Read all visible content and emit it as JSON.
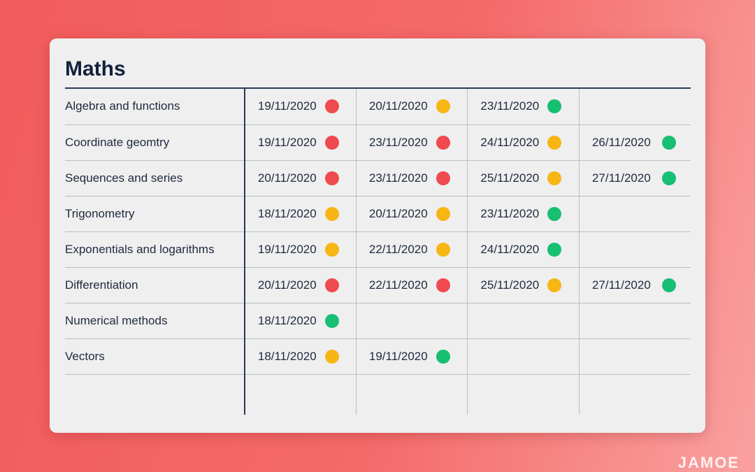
{
  "title": "Maths",
  "colors": {
    "red": "#ef4a4f",
    "amber": "#f7b614",
    "green": "#17bf73"
  },
  "rows": [
    {
      "subject": "Algebra and functions",
      "entries": [
        {
          "date": "19/11/2020",
          "status": "red"
        },
        {
          "date": "20/11/2020",
          "status": "amber"
        },
        {
          "date": "23/11/2020",
          "status": "green"
        }
      ]
    },
    {
      "subject": "Coordinate geomtry",
      "entries": [
        {
          "date": "19/11/2020",
          "status": "red"
        },
        {
          "date": "23/11/2020",
          "status": "red"
        },
        {
          "date": "24/11/2020",
          "status": "amber"
        },
        {
          "date": "26/11/2020",
          "status": "green"
        }
      ]
    },
    {
      "subject": "Sequences and series",
      "entries": [
        {
          "date": "20/11/2020",
          "status": "red"
        },
        {
          "date": "23/11/2020",
          "status": "red"
        },
        {
          "date": "25/11/2020",
          "status": "amber"
        },
        {
          "date": "27/11/2020",
          "status": "green"
        }
      ]
    },
    {
      "subject": "Trigonometry",
      "entries": [
        {
          "date": "18/11/2020",
          "status": "amber"
        },
        {
          "date": "20/11/2020",
          "status": "amber"
        },
        {
          "date": "23/11/2020",
          "status": "green"
        }
      ]
    },
    {
      "subject": "Exponentials and logarithms",
      "entries": [
        {
          "date": "19/11/2020",
          "status": "amber"
        },
        {
          "date": "22/11/2020",
          "status": "amber"
        },
        {
          "date": "24/11/2020",
          "status": "green"
        }
      ]
    },
    {
      "subject": "Differentiation",
      "entries": [
        {
          "date": "20/11/2020",
          "status": "red"
        },
        {
          "date": "22/11/2020",
          "status": "red"
        },
        {
          "date": "25/11/2020",
          "status": "amber"
        },
        {
          "date": "27/11/2020",
          "status": "green"
        }
      ]
    },
    {
      "subject": "Numerical methods",
      "entries": [
        {
          "date": "18/11/2020",
          "status": "green"
        }
      ]
    },
    {
      "subject": "Vectors",
      "entries": [
        {
          "date": "18/11/2020",
          "status": "amber"
        },
        {
          "date": "19/11/2020",
          "status": "green"
        }
      ]
    }
  ],
  "logo_text": "JAMOE"
}
